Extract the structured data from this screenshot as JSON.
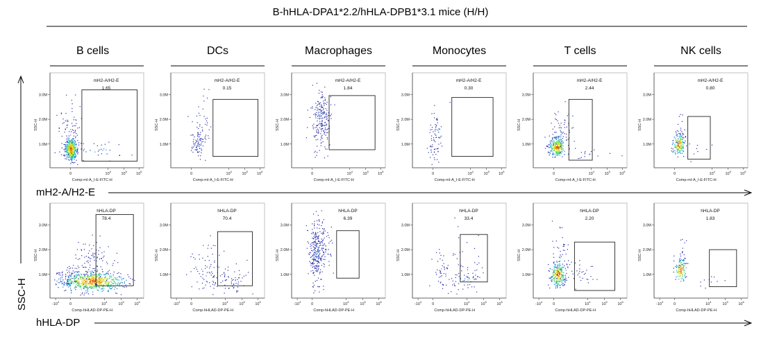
{
  "chart_data": {
    "type": "scatter",
    "subtype": "flow-cytometry-density-plots",
    "title": "B-hHLA-DPA1*2.2/hHLA-DPB1*3.1 mice (H/H)",
    "columns": [
      "B cells",
      "DCs",
      "Macrophages",
      "Monocytes",
      "T cells",
      "NK cells"
    ],
    "y_axis_label": "SSC-H",
    "y_ticks": [
      "1.0M",
      "2.0M",
      "3.0M"
    ],
    "rows": [
      {
        "marker_label": "mH2-A/H2-E",
        "gate_name": "mH2-A/H2-E",
        "x_axis_labels": [
          "Comp-mI-A_I-E-FITC-H",
          "Comp-mI-A_I-E-FITC-H",
          "Comp-mI-A_I-E-FITC-H",
          "Comp-mI-A_I-E-FITC-H",
          "Comp-mI-A_I-E-FITC-H",
          "Comp-mI-A_I-E-FITC-H"
        ],
        "x_ticks": [
          "0",
          "10^4",
          "10^5",
          "10^6"
        ],
        "gate_percent": [
          "1.65",
          "0.15",
          "1.84",
          "0.30",
          "2.44",
          "0.80"
        ]
      },
      {
        "marker_label": "hHLA-DP",
        "gate_name": "hHLA-DP",
        "x_axis_labels": [
          "Comp-hHLAD-DP-PE-H",
          "Comp-hHLAD-DP-PE-H",
          "Comp-hHLAD-DP-PE-H",
          "Comp-hHLAD-DP-PE-H",
          "Comp-hHLAD-DP-PE-H",
          "Comp-hHLAD-DP-PE-H"
        ],
        "x_ticks": [
          "-10^4",
          "0",
          "10^4",
          "10^5",
          "10^6"
        ],
        "gate_percent": [
          "78.4",
          "70.4",
          "6.39",
          "33.4",
          "2.20",
          "1.83"
        ]
      }
    ]
  }
}
